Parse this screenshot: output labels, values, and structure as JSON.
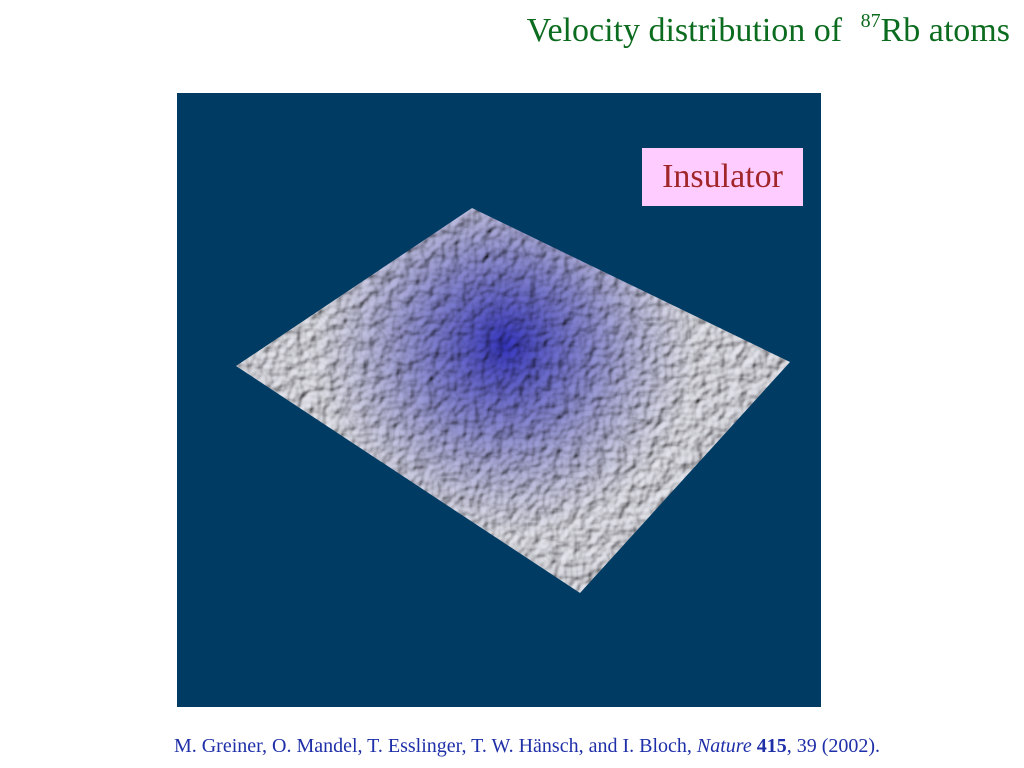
{
  "header": {
    "title_prefix": "Velocity distribution of",
    "isotope_mass": "87",
    "title_suffix": "Rb atoms"
  },
  "figure": {
    "label": "Insulator"
  },
  "citation": {
    "authors": "M. Greiner, O. Mandel, T. Esslinger, T. W. Hänsch, and I. Bloch,",
    "journal": "Nature",
    "volume": "415",
    "rest": ", 39 (2002)."
  }
}
